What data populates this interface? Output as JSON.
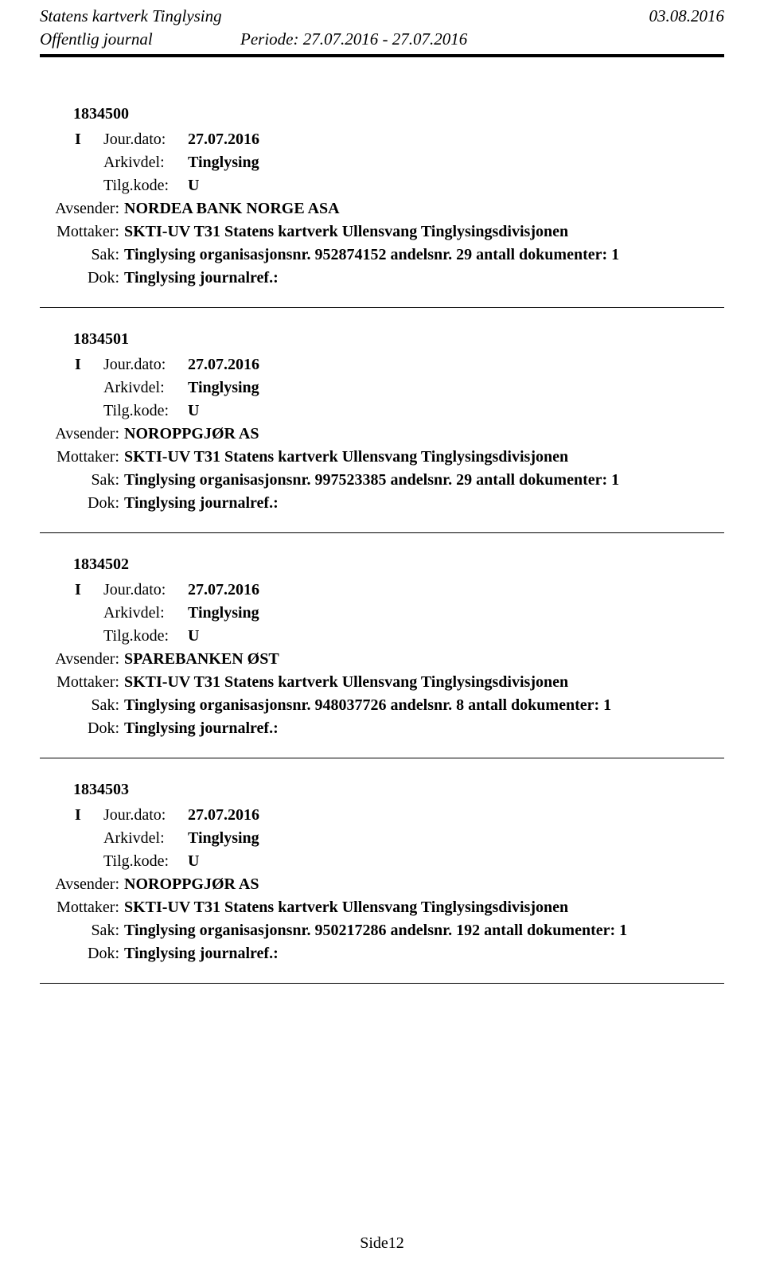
{
  "header": {
    "org_title": "Statens kartverk Tinglysing",
    "date_right": "03.08.2016",
    "journal_label": "Offentlig journal",
    "period": "Periode: 27.07.2016 - 27.07.2016"
  },
  "labels": {
    "jour_dato": "Jour.dato:",
    "arkivdel": "Arkivdel:",
    "tilg_kode": "Tilg.kode:",
    "avsender": "Avsender:",
    "mottaker": "Mottaker:",
    "sak": "Sak:",
    "dok": "Dok:"
  },
  "entries": [
    {
      "id": "1834500",
      "io": "I",
      "jour_dato": "27.07.2016",
      "arkivdel": "Tinglysing",
      "tilg_kode": "U",
      "avsender": "NORDEA BANK NORGE ASA",
      "mottaker": "SKTI-UV T31 Statens kartverk Ullensvang Tinglysingsdivisjonen",
      "sak": "Tinglysing organisasjonsnr. 952874152 andelsnr. 29 antall dokumenter: 1",
      "dok": "Tinglysing journalref.:"
    },
    {
      "id": "1834501",
      "io": "I",
      "jour_dato": "27.07.2016",
      "arkivdel": "Tinglysing",
      "tilg_kode": "U",
      "avsender": "NOROPPGJØR AS",
      "mottaker": "SKTI-UV T31 Statens kartverk Ullensvang Tinglysingsdivisjonen",
      "sak": "Tinglysing organisasjonsnr. 997523385 andelsnr. 29 antall dokumenter: 1",
      "dok": "Tinglysing journalref.:"
    },
    {
      "id": "1834502",
      "io": "I",
      "jour_dato": "27.07.2016",
      "arkivdel": "Tinglysing",
      "tilg_kode": "U",
      "avsender": "SPAREBANKEN ØST",
      "mottaker": "SKTI-UV T31 Statens kartverk Ullensvang Tinglysingsdivisjonen",
      "sak": "Tinglysing organisasjonsnr. 948037726 andelsnr. 8 antall dokumenter: 1",
      "dok": "Tinglysing journalref.:"
    },
    {
      "id": "1834503",
      "io": "I",
      "jour_dato": "27.07.2016",
      "arkivdel": "Tinglysing",
      "tilg_kode": "U",
      "avsender": "NOROPPGJØR AS",
      "mottaker": "SKTI-UV T31 Statens kartverk Ullensvang Tinglysingsdivisjonen",
      "sak": "Tinglysing organisasjonsnr. 950217286 andelsnr. 192 antall dokumenter: 1",
      "dok": "Tinglysing journalref.:"
    }
  ],
  "footer": {
    "page": "Side12"
  }
}
